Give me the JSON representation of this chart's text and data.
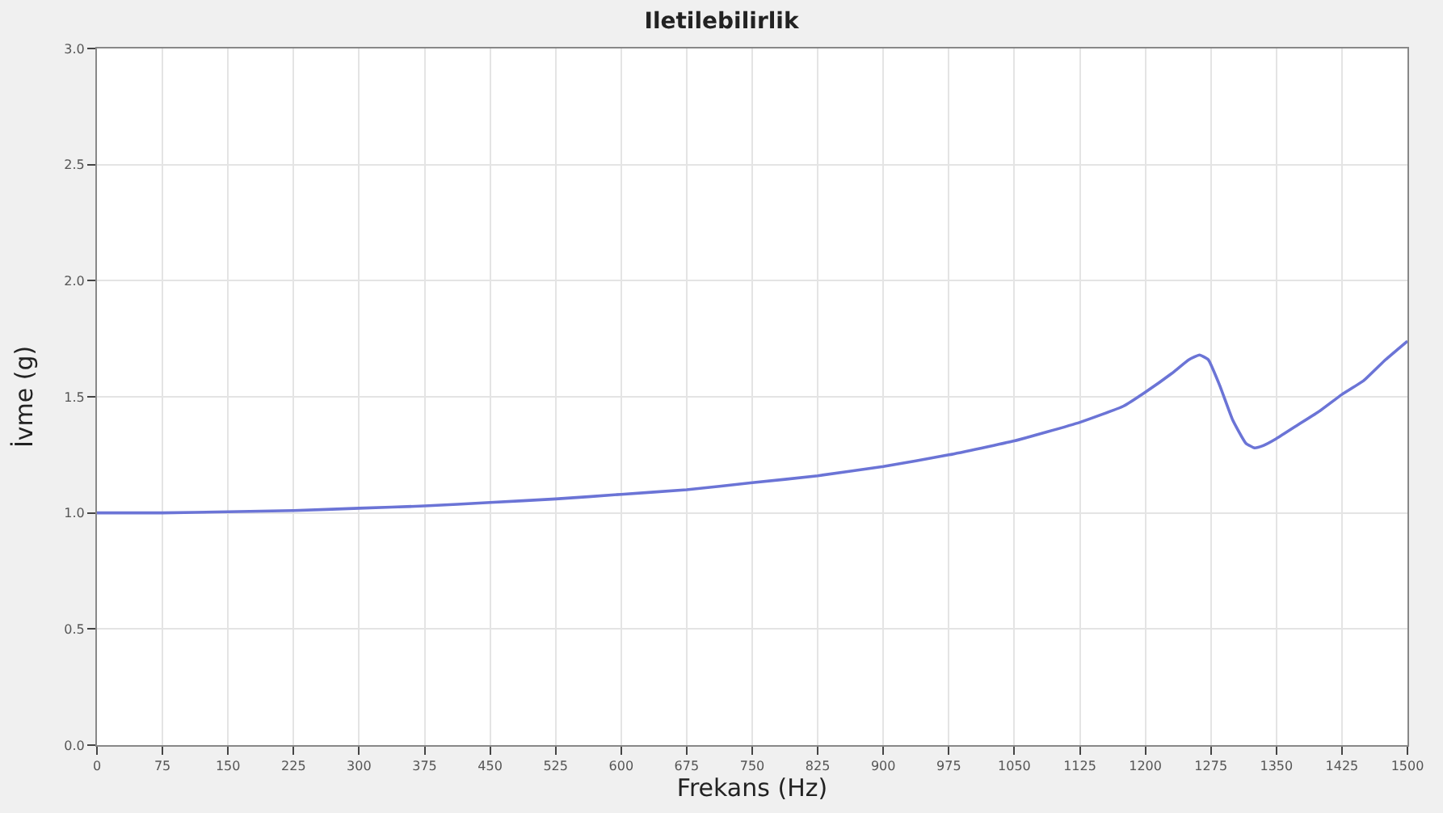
{
  "chart_data": {
    "type": "line",
    "title": "Iletilebilirlik",
    "xlabel": "Frekans (Hz)",
    "ylabel": "İvme (g)",
    "x": [
      0,
      75,
      150,
      225,
      300,
      375,
      450,
      525,
      600,
      675,
      750,
      825,
      900,
      975,
      1050,
      1125,
      1175,
      1200,
      1230,
      1250,
      1262,
      1272,
      1285,
      1300,
      1315,
      1325,
      1335,
      1350,
      1375,
      1400,
      1425,
      1450,
      1475,
      1500
    ],
    "series": [
      {
        "color": "#6b74d6",
        "values": [
          1.0,
          1.0,
          1.005,
          1.01,
          1.02,
          1.03,
          1.045,
          1.06,
          1.08,
          1.1,
          1.13,
          1.16,
          1.2,
          1.25,
          1.31,
          1.39,
          1.46,
          1.52,
          1.6,
          1.66,
          1.68,
          1.66,
          1.55,
          1.4,
          1.3,
          1.28,
          1.29,
          1.32,
          1.38,
          1.44,
          1.51,
          1.57,
          1.66,
          1.74
        ]
      }
    ],
    "xlim": [
      0,
      1500
    ],
    "xticks": [
      0,
      75,
      150,
      225,
      300,
      375,
      450,
      525,
      600,
      675,
      750,
      825,
      900,
      975,
      1050,
      1125,
      1200,
      1275,
      1350,
      1425,
      1500
    ],
    "ylim": [
      0,
      3
    ],
    "yticks": [
      {
        "value": 0,
        "label": "0.0"
      },
      0.5,
      {
        "value": 1,
        "label": "1.0"
      },
      1.5,
      {
        "value": 2,
        "label": "2.0"
      },
      2.5,
      {
        "value": 3,
        "label": "3.0"
      }
    ],
    "grid": true,
    "legend": false,
    "marker": "none",
    "line_style": "solid"
  }
}
